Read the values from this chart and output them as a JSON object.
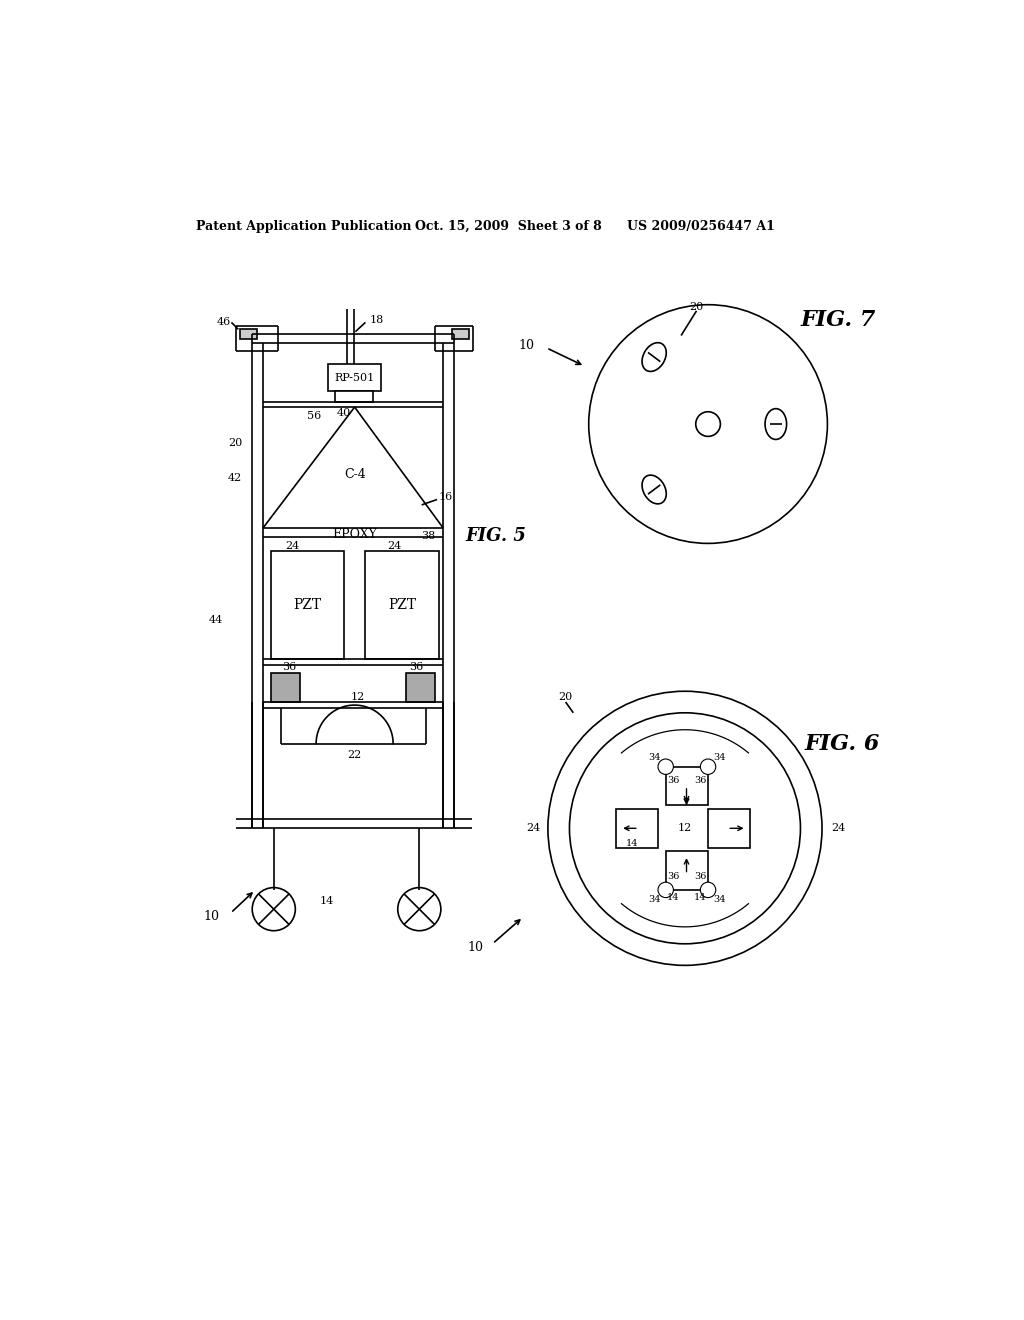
{
  "bg_color": "#ffffff",
  "line_color": "#000000",
  "header_left": "Patent Application Publication",
  "header_mid": "Oct. 15, 2009  Sheet 3 of 8",
  "header_right": "US 2009/0256447 A1",
  "fig5_label": "FIG. 5",
  "fig6_label": "FIG. 6",
  "fig7_label": "FIG. 7",
  "gray_fill": "#aaaaaa",
  "light_gray": "#cccccc"
}
